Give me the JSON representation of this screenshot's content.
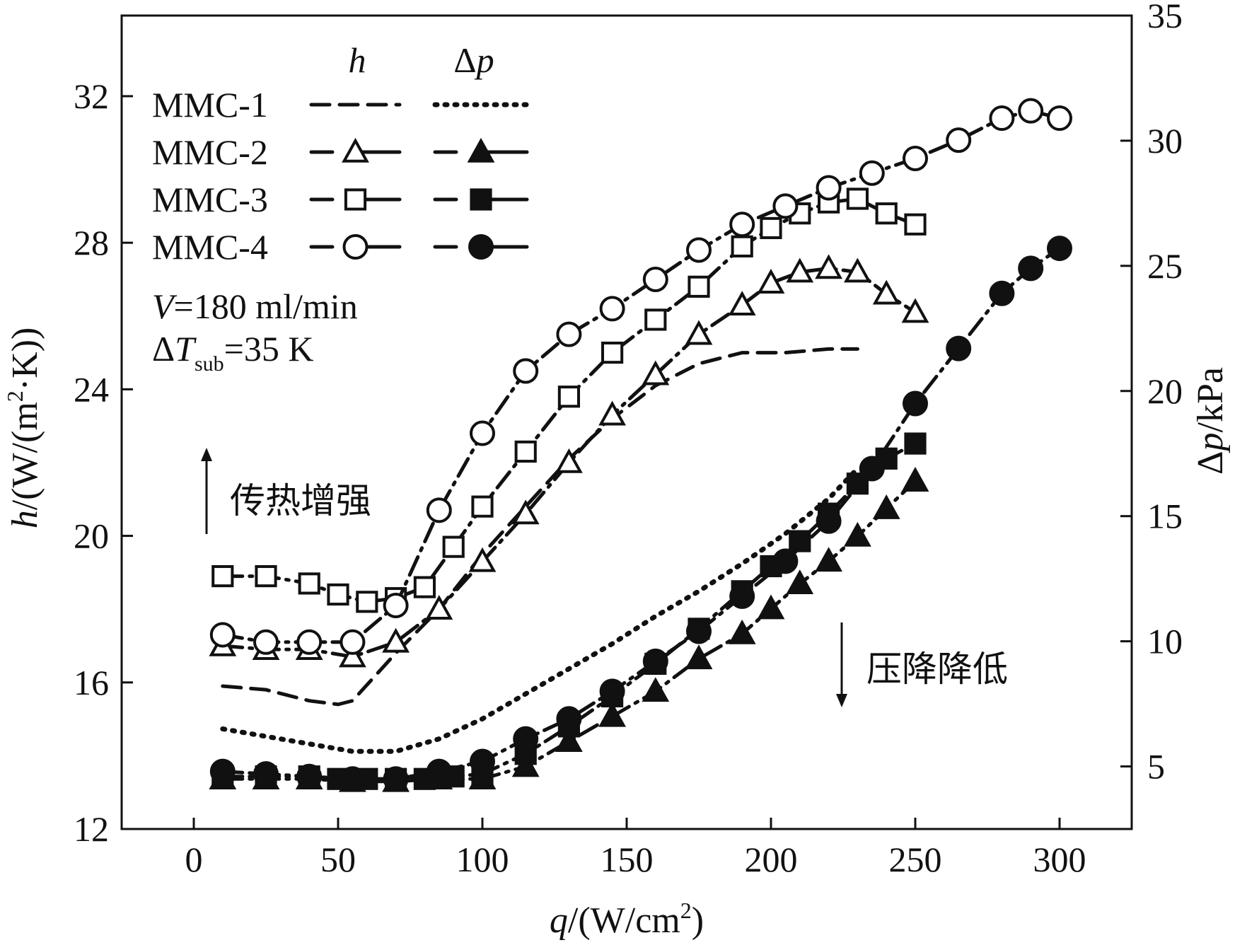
{
  "chart_data": {
    "type": "line",
    "x_axis": {
      "label_var": "q",
      "label_unit": "/(W/cm",
      "label_sup": "2",
      "label_close": ")",
      "min": -25,
      "max": 325,
      "ticks": [
        0,
        50,
        100,
        150,
        200,
        250,
        300
      ]
    },
    "y_axis_left": {
      "label_var": "h",
      "label_unit": "/(W/(m",
      "label_sup": "2",
      "label_dot": "·K))",
      "min": 12,
      "max": 34.2,
      "ticks": [
        12,
        16,
        20,
        24,
        28,
        32
      ]
    },
    "y_axis_right": {
      "label_delta": "Δ",
      "label_var": "p",
      "label_unit": "/kPa",
      "min": 2.5,
      "max": 35,
      "ticks": [
        5,
        10,
        15,
        20,
        25,
        30,
        35
      ]
    },
    "legend": {
      "header_h": "h",
      "header_dp_delta": "Δ",
      "header_dp_var": "p",
      "entries": [
        "MMC-1",
        "MMC-2",
        "MMC-3",
        "MMC-4"
      ],
      "cond_v_var": "V",
      "cond_v_value": "=180 ml/min",
      "cond_t_delta": "Δ",
      "cond_t_var": "T",
      "cond_t_sub": "sub",
      "cond_t_value": "=35 K"
    },
    "annotations": {
      "up": "传热增强",
      "down": "压降降低"
    },
    "series": [
      {
        "name": "MMC-1",
        "quantity": "h",
        "axis": "left",
        "marker": "none",
        "style": "dash",
        "x": [
          10,
          25,
          40,
          50,
          55,
          70,
          85,
          100,
          115,
          130,
          145,
          160,
          175,
          190,
          205,
          220,
          230
        ],
        "y": [
          15.9,
          15.8,
          15.5,
          15.4,
          15.5,
          16.8,
          18.0,
          19.5,
          20.8,
          22.1,
          23.2,
          24.1,
          24.7,
          25.0,
          25.0,
          25.1,
          25.1
        ]
      },
      {
        "name": "MMC-2",
        "quantity": "h",
        "axis": "left",
        "marker": "triangle-open",
        "style": "dashdot",
        "x": [
          10,
          25,
          40,
          55,
          70,
          85,
          100,
          115,
          130,
          145,
          160,
          175,
          190,
          200,
          210,
          220,
          230,
          240,
          250
        ],
        "y": [
          17.0,
          16.9,
          16.9,
          16.7,
          17.1,
          18.0,
          19.3,
          20.6,
          22.0,
          23.3,
          24.4,
          25.5,
          26.3,
          26.9,
          27.2,
          27.3,
          27.2,
          26.6,
          26.1
        ]
      },
      {
        "name": "MMC-3",
        "quantity": "h",
        "axis": "left",
        "marker": "square-open",
        "style": "dashdot",
        "x": [
          10,
          25,
          40,
          50,
          60,
          70,
          80,
          90,
          100,
          115,
          130,
          145,
          160,
          175,
          190,
          200,
          210,
          220,
          230,
          240,
          250
        ],
        "y": [
          18.9,
          18.9,
          18.7,
          18.4,
          18.2,
          18.3,
          18.6,
          19.7,
          20.8,
          22.3,
          23.8,
          25.0,
          25.9,
          26.8,
          27.9,
          28.4,
          28.8,
          29.1,
          29.2,
          28.8,
          28.5
        ]
      },
      {
        "name": "MMC-4",
        "quantity": "h",
        "axis": "left",
        "marker": "circle-open",
        "style": "dashdot",
        "x": [
          10,
          25,
          40,
          55,
          70,
          85,
          100,
          115,
          130,
          145,
          160,
          175,
          190,
          205,
          220,
          235,
          250,
          265,
          280,
          290,
          300
        ],
        "y": [
          17.3,
          17.1,
          17.1,
          17.1,
          18.1,
          20.7,
          22.8,
          24.5,
          25.5,
          26.2,
          27.0,
          27.8,
          28.5,
          29.0,
          29.5,
          29.9,
          30.3,
          30.8,
          31.4,
          31.6,
          31.4
        ]
      },
      {
        "name": "MMC-1",
        "quantity": "dp",
        "axis": "right",
        "marker": "none",
        "style": "dot",
        "x": [
          10,
          25,
          40,
          55,
          70,
          85,
          100,
          115,
          130,
          145,
          160,
          175,
          190,
          205,
          220,
          230
        ],
        "y": [
          6.5,
          6.2,
          5.9,
          5.6,
          5.6,
          6.1,
          6.9,
          7.9,
          8.9,
          9.9,
          11.0,
          12.0,
          13.1,
          14.3,
          15.7,
          16.9
        ]
      },
      {
        "name": "MMC-2",
        "quantity": "dp",
        "axis": "right",
        "marker": "triangle-filled",
        "style": "dashdot",
        "x": [
          10,
          25,
          40,
          55,
          70,
          85,
          100,
          115,
          130,
          145,
          160,
          175,
          190,
          200,
          210,
          220,
          230,
          240,
          250
        ],
        "y": [
          4.5,
          4.5,
          4.5,
          4.4,
          4.4,
          4.5,
          4.5,
          5.0,
          6.0,
          7.0,
          8.0,
          9.3,
          10.3,
          11.3,
          12.3,
          13.2,
          14.2,
          15.3,
          16.4
        ]
      },
      {
        "name": "MMC-3",
        "quantity": "dp",
        "axis": "right",
        "marker": "square-filled",
        "style": "dashdot",
        "x": [
          10,
          25,
          40,
          50,
          60,
          70,
          80,
          90,
          100,
          115,
          130,
          145,
          160,
          175,
          190,
          200,
          210,
          220,
          230,
          240,
          250
        ],
        "y": [
          4.6,
          4.6,
          4.6,
          4.5,
          4.5,
          4.5,
          4.5,
          4.6,
          4.7,
          5.5,
          6.6,
          7.8,
          9.1,
          10.5,
          12.0,
          13.0,
          14.0,
          15.1,
          16.3,
          17.3,
          17.9
        ]
      },
      {
        "name": "MMC-4",
        "quantity": "dp",
        "axis": "right",
        "marker": "circle-filled",
        "style": "dashdot",
        "x": [
          10,
          25,
          40,
          55,
          70,
          85,
          100,
          115,
          130,
          145,
          160,
          175,
          190,
          205,
          220,
          235,
          250,
          265,
          280,
          290,
          300
        ],
        "y": [
          4.8,
          4.7,
          4.6,
          4.5,
          4.5,
          4.8,
          5.2,
          6.1,
          6.9,
          8.0,
          9.2,
          10.4,
          11.8,
          13.2,
          14.8,
          16.9,
          19.5,
          21.7,
          23.9,
          24.9,
          25.7
        ]
      }
    ]
  }
}
